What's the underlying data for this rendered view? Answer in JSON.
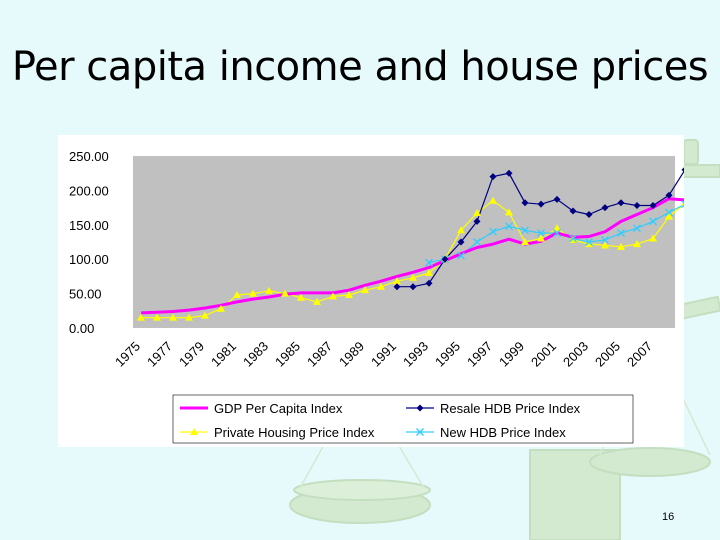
{
  "slide": {
    "title": "Per capita income and house prices",
    "page_number": "16"
  },
  "colors": {
    "background": "#e6f9fb",
    "gdp": "#ff00ff",
    "resale": "#000080",
    "private": "#ffff00",
    "new_hdb": "#33ccff"
  },
  "chart_data": {
    "type": "line",
    "x": [
      1975,
      1976,
      1977,
      1978,
      1979,
      1980,
      1981,
      1982,
      1983,
      1984,
      1985,
      1986,
      1987,
      1988,
      1989,
      1990,
      1991,
      1992,
      1993,
      1994,
      1995,
      1996,
      1997,
      1998,
      1999,
      2000,
      2001,
      2002,
      2003,
      2004,
      2005,
      2006,
      2007,
      2008,
      2009
    ],
    "x_tick_labels": [
      "1975",
      "1977",
      "1979",
      "1981",
      "1983",
      "1985",
      "1987",
      "1989",
      "1991",
      "1993",
      "1995",
      "1997",
      "1999",
      "2001",
      "2003",
      "2005",
      "2007"
    ],
    "y_tick_labels": [
      "0.00",
      "50.00",
      "100.00",
      "150.00",
      "200.00",
      "250.00"
    ],
    "ylim": [
      0,
      250
    ],
    "grid": false,
    "legend_position": "bottom",
    "series": [
      {
        "name": "GDP Per Capita Index",
        "color": "#ff00ff",
        "marker": "none",
        "values": [
          22,
          23,
          24,
          26,
          29,
          33,
          38,
          42,
          45,
          49,
          51,
          51,
          51,
          55,
          62,
          68,
          75,
          81,
          88,
          98,
          108,
          117,
          122,
          129,
          122,
          126,
          138,
          132,
          133,
          140,
          155,
          165,
          175,
          188,
          186
        ]
      },
      {
        "name": "Resale HDB Price Index",
        "color": "#000080",
        "marker": "diamond",
        "values": [
          null,
          null,
          null,
          null,
          null,
          null,
          null,
          null,
          null,
          null,
          null,
          null,
          null,
          null,
          null,
          null,
          60,
          60,
          65,
          100,
          125,
          155,
          220,
          225,
          182,
          180,
          187,
          170,
          165,
          175,
          182,
          178,
          178,
          193,
          230
        ]
      },
      {
        "name": "Private Housing Price Index",
        "color": "#ffff00",
        "marker": "triangle",
        "values": [
          15,
          15,
          15,
          15,
          18,
          28,
          48,
          50,
          54,
          50,
          44,
          38,
          46,
          48,
          55,
          60,
          68,
          73,
          80,
          100,
          142,
          167,
          185,
          168,
          125,
          130,
          145,
          128,
          122,
          120,
          118,
          122,
          130,
          162,
          181
        ]
      },
      {
        "name": "New HDB Price Index",
        "color": "#33ccff",
        "marker": "x",
        "values": [
          null,
          null,
          null,
          null,
          null,
          null,
          null,
          null,
          null,
          null,
          null,
          null,
          null,
          null,
          null,
          null,
          null,
          null,
          95,
          100,
          105,
          125,
          140,
          148,
          142,
          138,
          138,
          130,
          125,
          128,
          138,
          145,
          155,
          168,
          180
        ]
      }
    ]
  }
}
